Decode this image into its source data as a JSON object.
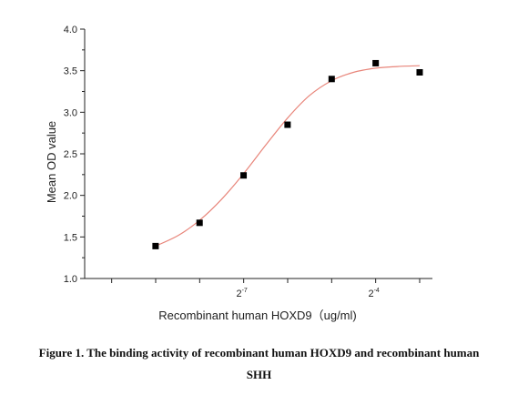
{
  "chart_data": {
    "type": "scatter",
    "xlabel": "Recombinant human HOXD9（ug/ml)",
    "ylabel": "Mean OD value",
    "x_scale": "log2",
    "x_tick_labels": [
      {
        "value": 0.0078125,
        "base": "2",
        "exp": "-7"
      },
      {
        "value": 0.0625,
        "base": "2",
        "exp": "-4"
      }
    ],
    "y_ticks": [
      "1.0",
      "1.5",
      "2.0",
      "2.5",
      "3.0",
      "3.5",
      "4.0"
    ],
    "ylim": [
      1.0,
      4.0
    ],
    "series": [
      {
        "type": "scatter",
        "marker": "square",
        "color": "#000000",
        "x": [
          0.00195,
          0.0039,
          0.0078,
          0.0156,
          0.03125,
          0.0625,
          0.125
        ],
        "y": [
          1.39,
          1.67,
          2.24,
          2.85,
          3.4,
          3.59,
          3.48
        ]
      },
      {
        "type": "line",
        "fit": "sigmoidal",
        "color": "#e8857a",
        "x": [
          0.00195,
          0.0028,
          0.0039,
          0.0055,
          0.0078,
          0.011,
          0.0156,
          0.022,
          0.03125,
          0.044,
          0.0625,
          0.088,
          0.125
        ],
        "y": [
          1.39,
          1.52,
          1.7,
          1.95,
          2.26,
          2.6,
          2.93,
          3.2,
          3.38,
          3.48,
          3.53,
          3.55,
          3.56
        ]
      }
    ],
    "grid": false,
    "legend": "none"
  },
  "caption": {
    "line1": "Figure 1. The binding activity of recombinant human HOXD9 and recombinant human",
    "line2": "SHH"
  }
}
